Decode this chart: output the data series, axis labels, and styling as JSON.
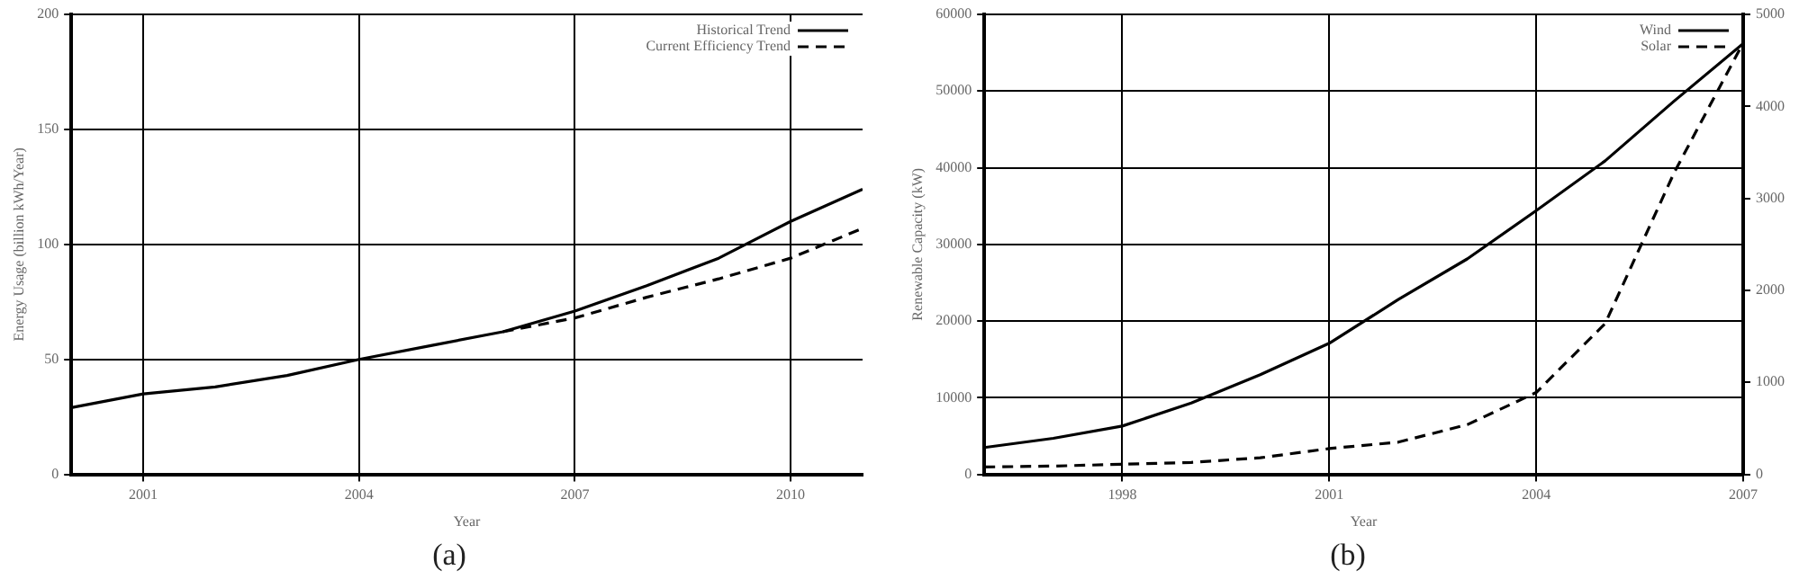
{
  "chart_data": [
    {
      "type": "line",
      "xlabel": "Year",
      "ylabel": "Energy Usage (billion kWh/Year)",
      "xlim": [
        2000,
        2011
      ],
      "xticks": [
        2001,
        2004,
        2007,
        2010
      ],
      "ylim": [
        0,
        200
      ],
      "yticks": [
        0,
        50,
        100,
        150,
        200
      ],
      "grid": true,
      "legend": "top right",
      "marker": "none",
      "annotations": [
        "(a)"
      ],
      "series": [
        {
          "name": "Historical Trend",
          "color": "#000000",
          "line_style": "solid",
          "x": [
            2000,
            2001,
            2002,
            2003,
            2004,
            2005,
            2006,
            2007,
            2008,
            2009,
            2010,
            2011
          ],
          "values": [
            29,
            35,
            38,
            43,
            50,
            56,
            62,
            71,
            82,
            94,
            110,
            124
          ]
        },
        {
          "name": "Current Efficiency Trend",
          "color": "#000000",
          "line_style": "dashed",
          "x": [
            2006,
            2007,
            2008,
            2009,
            2010,
            2011
          ],
          "values": [
            62,
            68,
            77,
            85,
            94,
            107
          ]
        }
      ]
    },
    {
      "type": "line",
      "xlabel": "Year",
      "ylabel": "Renewable Capacity (kW)",
      "xlim": [
        1996,
        2007
      ],
      "xticks": [
        1998,
        2001,
        2004,
        2007
      ],
      "ylim": [
        0,
        60000
      ],
      "yticks": [
        0,
        10000,
        20000,
        30000,
        40000,
        50000,
        60000
      ],
      "y2lim": [
        0,
        5000
      ],
      "y2ticks": [
        0,
        1000,
        2000,
        3000,
        4000,
        5000
      ],
      "grid": true,
      "legend": "top right",
      "marker": "none",
      "annotations": [
        "(b)"
      ],
      "series": [
        {
          "name": "Wind",
          "color": "#000000",
          "line_style": "solid",
          "x": [
            1996,
            1997,
            1998,
            1999,
            2000,
            2001,
            2002,
            2003,
            2004,
            2005,
            2006,
            2007
          ],
          "values": [
            3500,
            4700,
            6300,
            9300,
            13000,
            17100,
            22800,
            28100,
            34400,
            40900,
            48700,
            56200
          ]
        },
        {
          "name": "Solar",
          "color": "#000000",
          "line_style": "dashed",
          "axis": "y2",
          "x": [
            1996,
            1997,
            1998,
            1999,
            2000,
            2001,
            2002,
            2003,
            2004,
            2005,
            2006,
            2007
          ],
          "values": [
            80,
            90,
            110,
            130,
            180,
            280,
            350,
            540,
            890,
            1640,
            3280,
            4690
          ]
        }
      ]
    }
  ]
}
